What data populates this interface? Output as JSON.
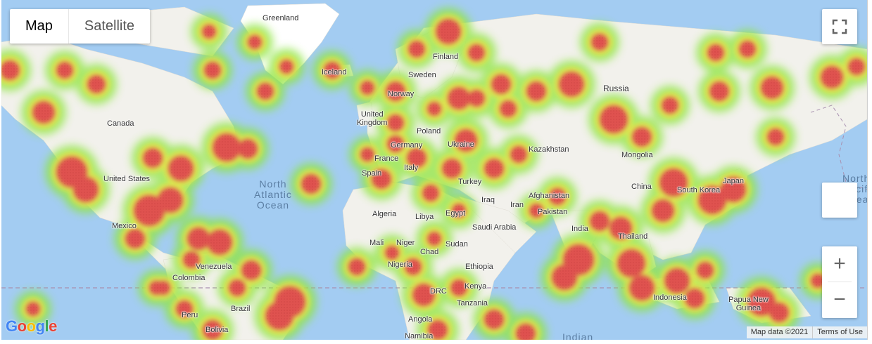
{
  "controls": {
    "map_type": {
      "map_label": "Map",
      "satellite_label": "Satellite",
      "selected": "Map"
    },
    "zoom_in": "+",
    "zoom_out": "−",
    "fullscreen_icon": "fullscreen-icon"
  },
  "attribution": {
    "map_data": "Map data ©2021",
    "terms": "Terms of Use"
  },
  "logo": {
    "letters": [
      "G",
      "o",
      "o",
      "g",
      "l",
      "e"
    ],
    "colors": [
      "#4285F4",
      "#EA4335",
      "#FBBC05",
      "#4285F4",
      "#34A853",
      "#EA4335"
    ]
  },
  "labels": {
    "greenland": "Greenland",
    "iceland": "Iceland",
    "finland": "Finland",
    "sweden": "Sweden",
    "norway": "Norway",
    "russia": "Russia",
    "united_kingdom": "United\nKingdom",
    "poland": "Poland",
    "germany": "Germany",
    "ukraine": "Ukraine",
    "france": "France",
    "italy": "Italy",
    "spain": "Spain",
    "turkey": "Turkey",
    "kazakhstan": "Kazakhstan",
    "mongolia": "Mongolia",
    "canada": "Canada",
    "united_states": "United States",
    "mexico": "Mexico",
    "north_atlantic": "North\nAtlantic\nOcean",
    "algeria": "Algeria",
    "libya": "Libya",
    "egypt": "Egypt",
    "iraq": "Iraq",
    "iran": "Iran",
    "afghanistan": "Afghanistan",
    "pakistan": "Pakistan",
    "china": "China",
    "south_korea": "South Korea",
    "japan": "Japan",
    "saudi_arabia": "Saudi Arabia",
    "india": "India",
    "mali": "Mali",
    "niger": "Niger",
    "chad": "Chad",
    "sudan": "Sudan",
    "nigeria": "Nigeria",
    "ethiopia": "Ethiopia",
    "thailand": "Thailand",
    "venezuela": "Venezuela",
    "colombia": "Colombia",
    "kenya": "Kenya",
    "drc": "DRC",
    "tanzania": "Tanzania",
    "indonesia": "Indonesia",
    "papua_new_guinea": "Papua New\nGuinea",
    "brazil": "Brazil",
    "peru": "Peru",
    "bolivia": "Bolivia",
    "angola": "Angola",
    "namibia": "Namibia",
    "indian": "Indian",
    "north_pacific": "North\nPacific\nOcean"
  },
  "heatmap": {
    "layer": "heatmap",
    "gradient": [
      "#7cfc00",
      "#e0e000",
      "#ff3030"
    ],
    "land_color": "#f4f3ef",
    "water_color": "#a3ccf2"
  }
}
